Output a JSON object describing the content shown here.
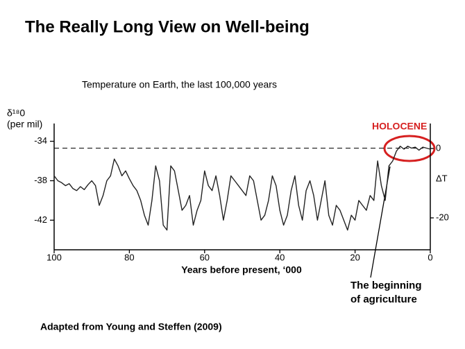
{
  "title": "The Really Long View on Well-being",
  "source": "Adapted from Young and Steffen (2009)",
  "chart_data": {
    "type": "line",
    "title": "Temperature on Earth, the last 100,000 years",
    "xlabel": "Years before present, ‘000",
    "ylabel": [
      "δ¹⁸0",
      "(per mil)"
    ],
    "y2label": "ΔT",
    "color": "#222222",
    "x": [
      100,
      99,
      98,
      97,
      96,
      95,
      94,
      93,
      92,
      91,
      90,
      89,
      88,
      87,
      86,
      85,
      84,
      83,
      82,
      81,
      80,
      79,
      78,
      77,
      76,
      75,
      74,
      73,
      72,
      71,
      70,
      69,
      68,
      67,
      66,
      65,
      64,
      63,
      62,
      61,
      60,
      59,
      58,
      57,
      56,
      55,
      54,
      53,
      52,
      51,
      50,
      49,
      48,
      47,
      46,
      45,
      44,
      43,
      42,
      41,
      40,
      39,
      38,
      37,
      36,
      35,
      34,
      33,
      32,
      31,
      30,
      29,
      28,
      27,
      26,
      25,
      24,
      23,
      22,
      21,
      20,
      19,
      18,
      17,
      16,
      15,
      14,
      13,
      12,
      11,
      10,
      9,
      8,
      7,
      6,
      5,
      4,
      3,
      2,
      1,
      0
    ],
    "values": [
      -37.5,
      -38,
      -38.2,
      -38.5,
      -38.3,
      -38.8,
      -39,
      -38.6,
      -38.9,
      -38.4,
      -38,
      -38.5,
      -40.5,
      -39.5,
      -38,
      -37.5,
      -35.8,
      -36.5,
      -37.5,
      -37,
      -37.8,
      -38.5,
      -39,
      -40,
      -41.5,
      -42.5,
      -40,
      -36.5,
      -38,
      -42.5,
      -43,
      -36.5,
      -37,
      -39,
      -41,
      -40.5,
      -39.5,
      -42.5,
      -41,
      -40,
      -37,
      -38.5,
      -39,
      -37.5,
      -39.5,
      -42,
      -40,
      -37.5,
      -38,
      -38.5,
      -39,
      -39.5,
      -37.5,
      -38,
      -40,
      -42,
      -41.5,
      -40,
      -37.5,
      -38.5,
      -41,
      -42.5,
      -41.5,
      -39,
      -37.5,
      -40.5,
      -42,
      -39,
      -38,
      -39.5,
      -42,
      -40,
      -38,
      -41.5,
      -42.5,
      -40.5,
      -41,
      -42,
      -43,
      -41.5,
      -42,
      -40,
      -40.5,
      -41,
      -39.5,
      -40,
      -36,
      -38.5,
      -40,
      -36.5,
      -36,
      -35,
      -34.5,
      -34.8,
      -34.5,
      -34.7,
      -34.6,
      -34.9,
      -34.6,
      -34.7,
      -34.8
    ],
    "xlim": [
      100,
      0
    ],
    "xticks": [
      100,
      80,
      60,
      40,
      20,
      0
    ],
    "ylim": [
      -45,
      -32.2
    ],
    "yticks": [
      -34,
      -38,
      -42
    ],
    "y2lim": [
      -29.2,
      7.2
    ],
    "y2ticks": [
      0,
      -20
    ],
    "reference_line": -34.7,
    "annotations": [
      {
        "text": "HOLOCENE"
      },
      {
        "text": [
          "The beginning",
          "of agriculture"
        ]
      }
    ]
  }
}
